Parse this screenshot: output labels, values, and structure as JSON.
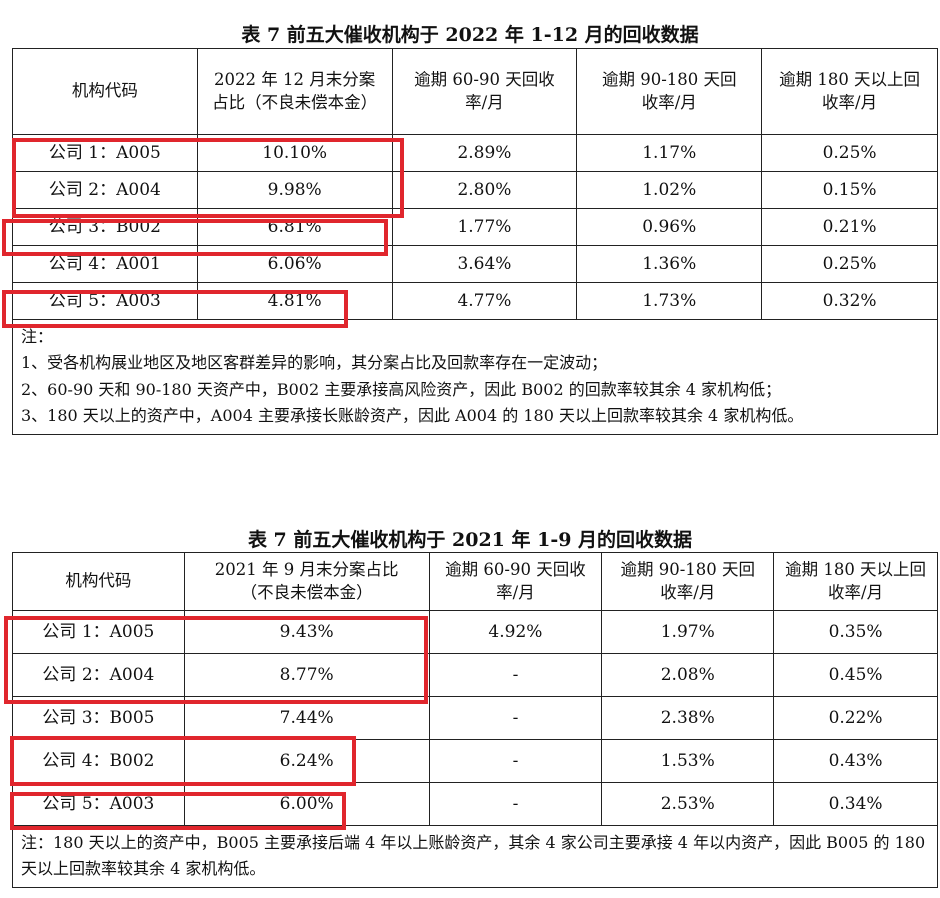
{
  "table1": {
    "title": "表 7 前五大催收机构于 2022 年 1-12 月的回收数据",
    "headers": [
      "机构代码",
      "2022 年 12 月末分案占比（不良未偿本金）",
      "逾期 60-90 天回收率/月",
      "逾期 90-180 天回收率/月",
      "逾期 180 天以上回收率/月"
    ],
    "rows": [
      [
        "公司 1：A005",
        "10.10%",
        "2.89%",
        "1.17%",
        "0.25%"
      ],
      [
        "公司 2：A004",
        "9.98%",
        "2.80%",
        "1.02%",
        "0.15%"
      ],
      [
        "公司 3：B002",
        "6.81%",
        "1.77%",
        "0.96%",
        "0.21%"
      ],
      [
        "公司 4：A001",
        "6.06%",
        "3.64%",
        "1.36%",
        "0.25%"
      ],
      [
        "公司 5：A003",
        "4.81%",
        "4.77%",
        "1.73%",
        "0.32%"
      ]
    ],
    "notes": [
      "注：",
      "1、受各机构展业地区及地区客群差异的影响，其分案占比及回款率存在一定波动；",
      "2、60-90 天和 90-180 天资产中，B002 主要承接高风险资产，因此 B002 的回款率较其余 4 家机构低；",
      "3、180 天以上的资产中，A004 主要承接长账龄资产，因此 A004 的 180 天以上回款率较其余 4 家机构低。"
    ]
  },
  "table2": {
    "title": "表 7 前五大催收机构于 2021 年 1-9 月的回收数据",
    "headers": [
      "机构代码",
      "2021 年 9 月末分案占比（不良未偿本金）",
      "逾期 60-90 天回收率/月",
      "逾期 90-180 天回收率/月",
      "逾期 180 天以上回收率/月"
    ],
    "rows": [
      [
        "公司 1：A005",
        "9.43%",
        "4.92%",
        "1.97%",
        "0.35%"
      ],
      [
        "公司 2：A004",
        "8.77%",
        "-",
        "2.08%",
        "0.45%"
      ],
      [
        "公司 3：B005",
        "7.44%",
        "-",
        "2.38%",
        "0.22%"
      ],
      [
        "公司 4：B002",
        "6.24%",
        "-",
        "1.53%",
        "0.43%"
      ],
      [
        "公司 5：A003",
        "6.00%",
        "-",
        "2.53%",
        "0.34%"
      ]
    ],
    "note": "注：180 天以上的资产中，B005 主要承接后端 4 年以上账龄资产，其余 4 家公司主要承接 4 年以内资产，因此 B005 的 180 天以上回款率较其余 4 家机构低。"
  },
  "highlight_color": "#e0262d"
}
